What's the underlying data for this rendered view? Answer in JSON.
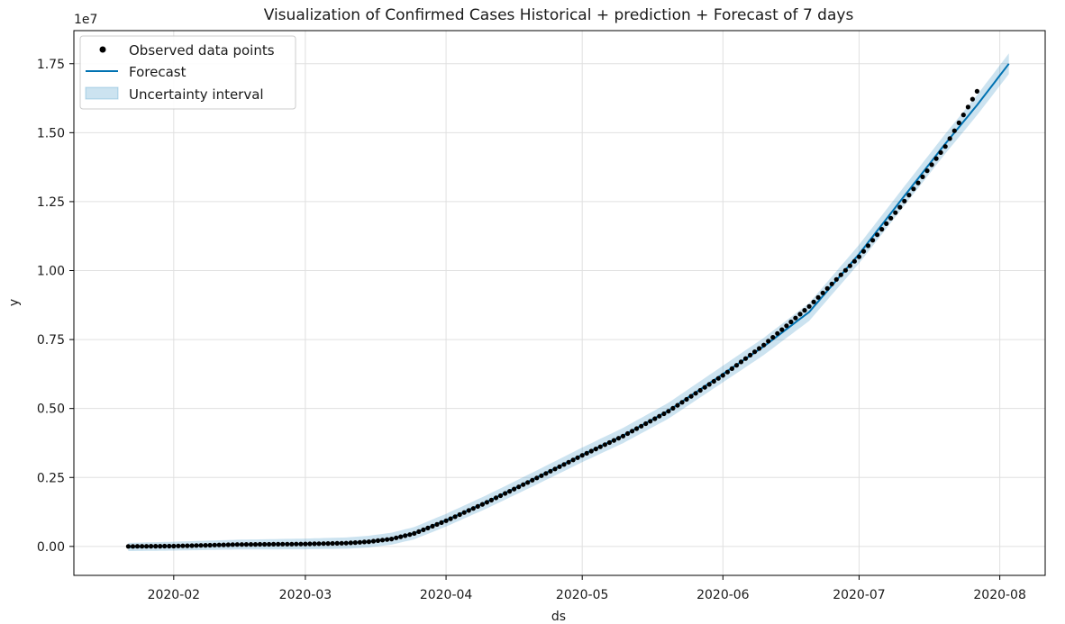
{
  "chart_data": {
    "type": "line",
    "title": "Visualization of Confirmed Cases Historical + prediction + Forecast of 7 days",
    "xlabel": "ds",
    "ylabel": "y",
    "y_scale_label": "1e7",
    "grid": true,
    "legend_position": "top-left",
    "x_range": [
      "2020-01-10",
      "2020-08-11"
    ],
    "ylim": [
      -1050000,
      18700000
    ],
    "x_ticks": [
      "2020-02-01",
      "2020-03-01",
      "2020-04-01",
      "2020-05-01",
      "2020-06-01",
      "2020-07-01",
      "2020-08-01"
    ],
    "x_tick_labels": [
      "2020-02",
      "2020-03",
      "2020-04",
      "2020-05",
      "2020-06",
      "2020-07",
      "2020-08"
    ],
    "y_ticks": [
      0,
      2500000,
      5000000,
      7500000,
      10000000,
      12500000,
      15000000,
      17500000
    ],
    "y_tick_labels": [
      "0.00",
      "0.25",
      "0.50",
      "0.75",
      "1.00",
      "1.25",
      "1.50",
      "1.75"
    ],
    "legend": [
      "Observed data points",
      "Forecast",
      "Uncertainty interval"
    ],
    "colors": {
      "observed": "#000000",
      "forecast": "#0072b2",
      "uncertainty": "#0072b2",
      "grid": "#e0e0e0"
    },
    "observed": {
      "start": "2020-01-22",
      "end": "2020-07-27",
      "anchors": [
        {
          "x": "2020-01-22",
          "y": 600
        },
        {
          "x": "2020-02-01",
          "y": 12000
        },
        {
          "x": "2020-02-15",
          "y": 69000
        },
        {
          "x": "2020-03-01",
          "y": 88000
        },
        {
          "x": "2020-03-10",
          "y": 119000
        },
        {
          "x": "2020-03-15",
          "y": 170000
        },
        {
          "x": "2020-03-20",
          "y": 270000
        },
        {
          "x": "2020-03-25",
          "y": 470000
        },
        {
          "x": "2020-04-01",
          "y": 930000
        },
        {
          "x": "2020-04-10",
          "y": 1600000
        },
        {
          "x": "2020-04-20",
          "y": 2400000
        },
        {
          "x": "2020-05-01",
          "y": 3300000
        },
        {
          "x": "2020-05-10",
          "y": 4000000
        },
        {
          "x": "2020-05-20",
          "y": 4900000
        },
        {
          "x": "2020-06-01",
          "y": 6200000
        },
        {
          "x": "2020-06-10",
          "y": 7300000
        },
        {
          "x": "2020-06-20",
          "y": 8700000
        },
        {
          "x": "2020-07-01",
          "y": 10500000
        },
        {
          "x": "2020-07-10",
          "y": 12300000
        },
        {
          "x": "2020-07-20",
          "y": 14500000
        },
        {
          "x": "2020-07-27",
          "y": 16500000
        }
      ]
    },
    "forecast": {
      "start": "2020-01-22",
      "end": "2020-08-03",
      "anchors": [
        {
          "x": "2020-01-22",
          "y": -20000
        },
        {
          "x": "2020-02-01",
          "y": 10000
        },
        {
          "x": "2020-02-15",
          "y": 65000
        },
        {
          "x": "2020-03-01",
          "y": 90000
        },
        {
          "x": "2020-03-10",
          "y": 120000
        },
        {
          "x": "2020-03-15",
          "y": 175000
        },
        {
          "x": "2020-03-20",
          "y": 280000
        },
        {
          "x": "2020-03-25",
          "y": 480000
        },
        {
          "x": "2020-04-01",
          "y": 950000
        },
        {
          "x": "2020-04-10",
          "y": 1620000
        },
        {
          "x": "2020-04-20",
          "y": 2420000
        },
        {
          "x": "2020-05-01",
          "y": 3320000
        },
        {
          "x": "2020-05-10",
          "y": 4020000
        },
        {
          "x": "2020-05-20",
          "y": 4920000
        },
        {
          "x": "2020-06-01",
          "y": 6250000
        },
        {
          "x": "2020-06-10",
          "y": 7250000
        },
        {
          "x": "2020-06-20",
          "y": 8500000
        },
        {
          "x": "2020-07-01",
          "y": 10600000
        },
        {
          "x": "2020-07-10",
          "y": 12500000
        },
        {
          "x": "2020-07-20",
          "y": 14600000
        },
        {
          "x": "2020-07-27",
          "y": 16000000
        },
        {
          "x": "2020-08-03",
          "y": 17500000
        }
      ],
      "uncertainty_half_width": 150000
    }
  }
}
